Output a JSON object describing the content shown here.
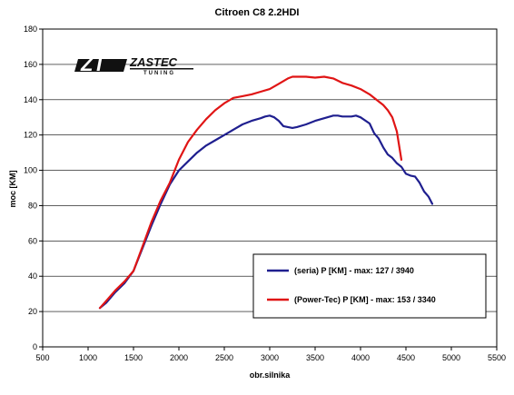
{
  "chart_data": {
    "type": "line",
    "title": "Citroen C8 2.2HDI",
    "xlabel": "obr.silnika",
    "ylabel": "moc [KM]",
    "xlim": [
      500,
      5500
    ],
    "ylim": [
      0,
      180
    ],
    "x_ticks": [
      500,
      1000,
      1500,
      2000,
      2500,
      3000,
      3500,
      4000,
      4500,
      5000,
      5500
    ],
    "y_ticks": [
      0,
      20,
      40,
      60,
      80,
      100,
      120,
      140,
      160,
      180
    ],
    "grid": true,
    "legend_position": "bottom-right",
    "series": [
      {
        "name": "(seria) P [KM] - max: 127 / 3940",
        "color": "#1f1f8f",
        "x": [
          1130,
          1200,
          1300,
          1400,
          1500,
          1600,
          1700,
          1800,
          1900,
          2000,
          2100,
          2200,
          2300,
          2400,
          2500,
          2600,
          2700,
          2800,
          2900,
          2950,
          3000,
          3050,
          3100,
          3150,
          3250,
          3300,
          3400,
          3500,
          3600,
          3700,
          3750,
          3800,
          3900,
          3950,
          4000,
          4100,
          4150,
          4200,
          4250,
          4300,
          4350,
          4400,
          4450,
          4500,
          4550,
          4600,
          4650,
          4700,
          4750,
          4790
        ],
        "y": [
          22,
          25,
          31,
          36,
          43,
          56,
          69,
          81,
          92,
          100,
          105,
          110,
          114,
          117,
          120,
          123,
          126,
          128,
          129.5,
          130.5,
          131,
          130,
          128,
          125,
          124,
          124.5,
          126,
          128,
          129.5,
          131,
          131,
          130.5,
          130.5,
          131,
          130,
          126.5,
          121,
          118,
          113,
          109,
          107,
          104,
          102,
          98,
          97,
          96.5,
          93,
          88,
          85,
          81
        ]
      },
      {
        "name": "(Power-Tec) P [KM] - max: 153 / 3340",
        "color": "#e01515",
        "x": [
          1130,
          1200,
          1300,
          1400,
          1500,
          1600,
          1700,
          1800,
          1900,
          2000,
          2100,
          2200,
          2300,
          2400,
          2500,
          2600,
          2700,
          2800,
          2900,
          3000,
          3100,
          3200,
          3250,
          3300,
          3400,
          3500,
          3600,
          3700,
          3800,
          3900,
          4000,
          4100,
          4200,
          4250,
          4300,
          4350,
          4400,
          4450
        ],
        "y": [
          22,
          26,
          32,
          37,
          43,
          57,
          71,
          83,
          93,
          106,
          116,
          123,
          129,
          134,
          138,
          141,
          142,
          143,
          144.5,
          146,
          149,
          152,
          153,
          153,
          153,
          152.5,
          153,
          152,
          149.5,
          148,
          146,
          143,
          139,
          137,
          134,
          130,
          122,
          106
        ]
      }
    ]
  },
  "logo": {
    "mark": "ZT",
    "name": "ZASTEC",
    "tagline": "TUNING"
  }
}
